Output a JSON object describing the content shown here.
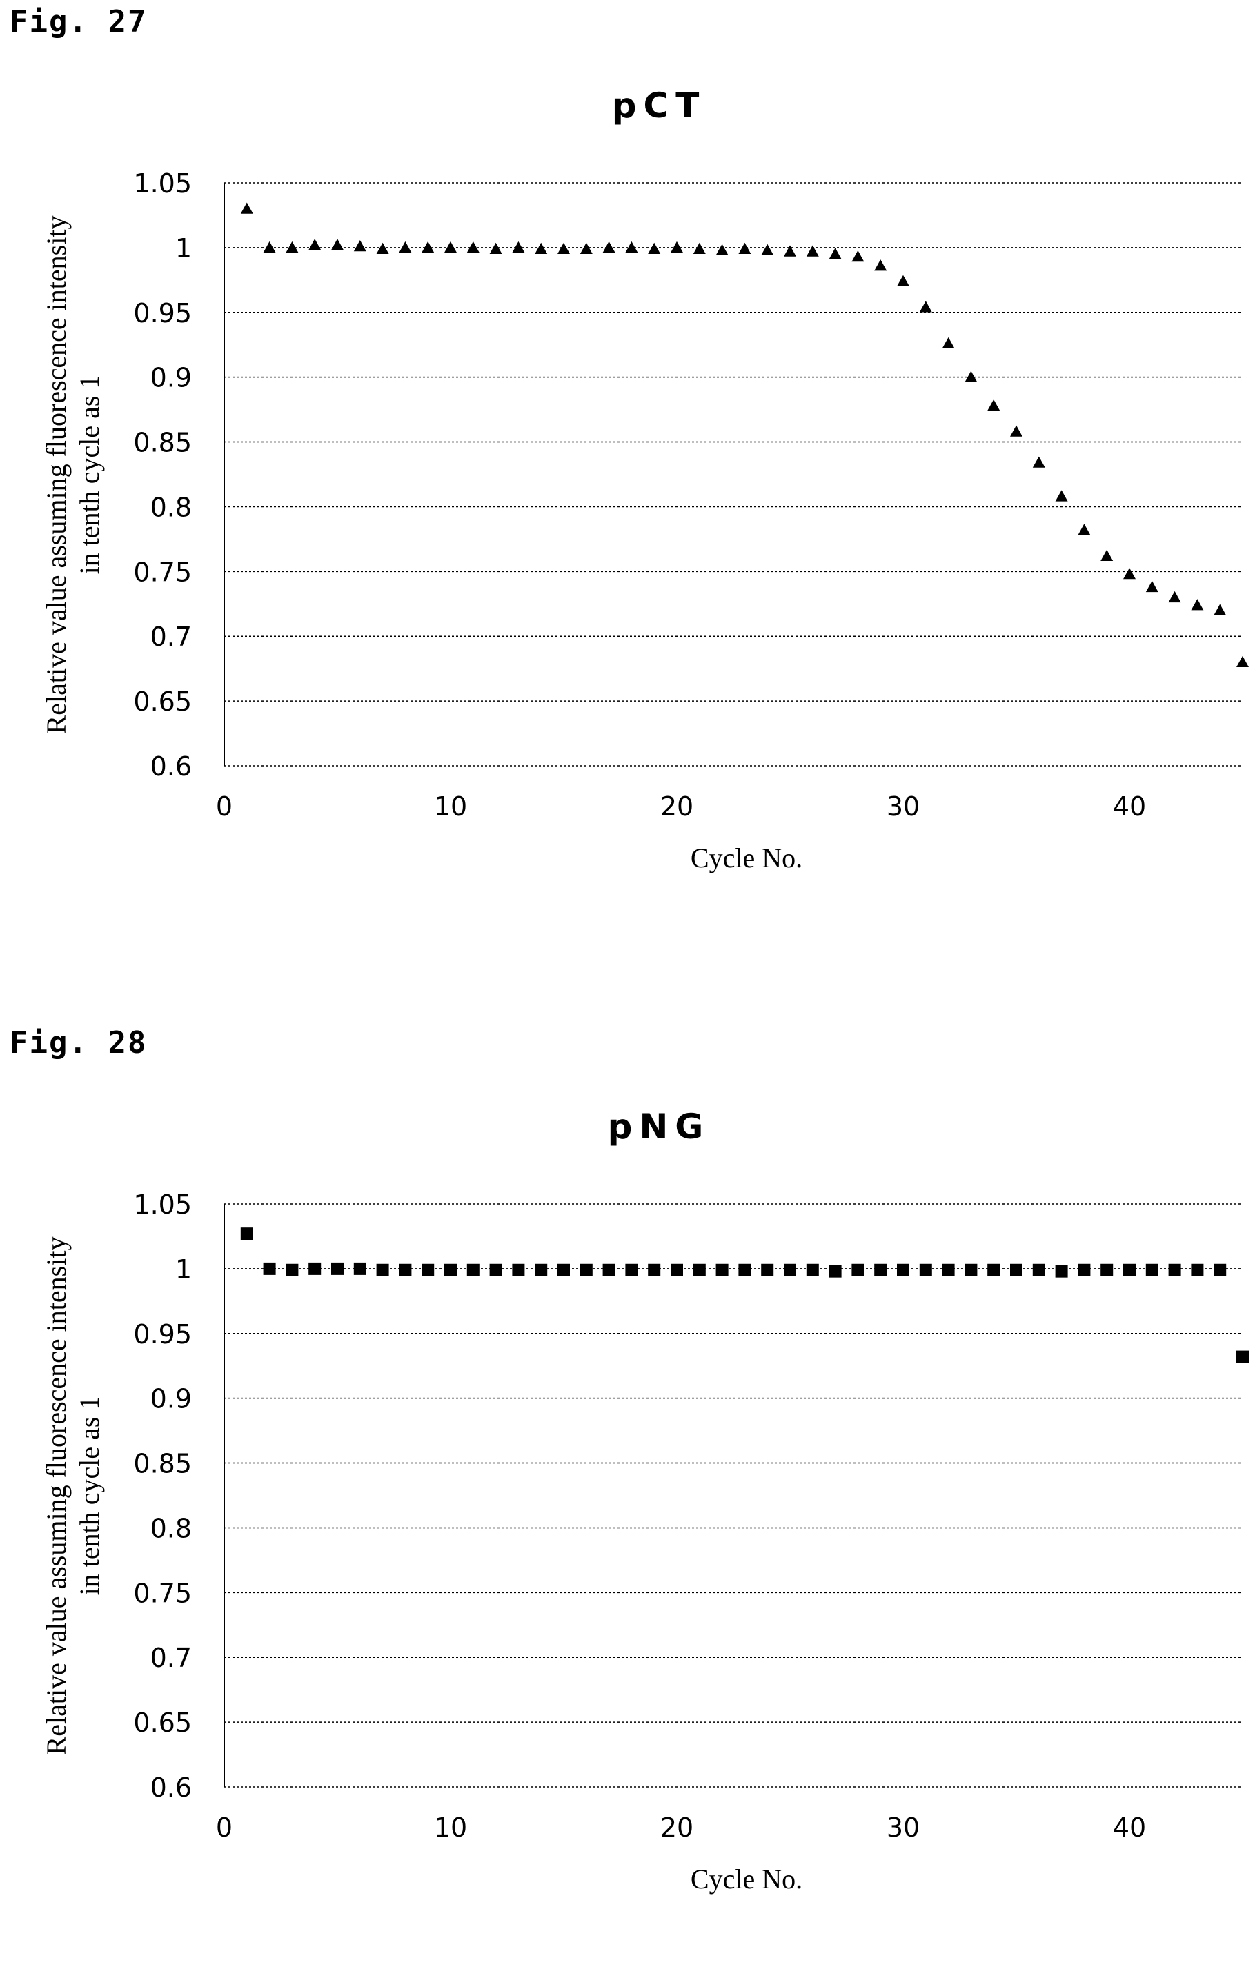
{
  "figures": [
    {
      "label": "Fig. 27"
    },
    {
      "label": "Fig. 28"
    }
  ],
  "chart_data": [
    {
      "type": "scatter",
      "title": "pCT",
      "xlabel": "Cycle No.",
      "ylabel_lines": [
        "Relative value assuming fluorescence intensity",
        "in tenth cycle as 1"
      ],
      "xlim": [
        0,
        45
      ],
      "ylim": [
        0.6,
        1.05
      ],
      "xticks": [
        0,
        10,
        20,
        30,
        40
      ],
      "yticks": [
        0.6,
        0.65,
        0.7,
        0.75,
        0.8,
        0.85,
        0.9,
        0.95,
        1,
        1.05
      ],
      "ytick_labels": [
        "0.6",
        "0.65",
        "0.7",
        "0.75",
        "0.8",
        "0.85",
        "0.9",
        "0.95",
        "1",
        "1.05"
      ],
      "grid": "horizontal dotted",
      "marker": "triangle",
      "color": "#000000",
      "x": [
        1,
        2,
        3,
        4,
        5,
        6,
        7,
        8,
        9,
        10,
        11,
        12,
        13,
        14,
        15,
        16,
        17,
        18,
        19,
        20,
        21,
        22,
        23,
        24,
        25,
        26,
        27,
        28,
        29,
        30,
        31,
        32,
        33,
        34,
        35,
        36,
        37,
        38,
        39,
        40,
        41,
        42,
        43,
        44,
        45
      ],
      "y": [
        1.03,
        1.0,
        1.0,
        1.002,
        1.002,
        1.001,
        0.999,
        1.0,
        1.0,
        1.0,
        1.0,
        0.999,
        1.0,
        0.999,
        0.999,
        0.999,
        1.0,
        1.0,
        0.999,
        1.0,
        0.999,
        0.998,
        0.999,
        0.998,
        0.997,
        0.997,
        0.995,
        0.993,
        0.986,
        0.974,
        0.954,
        0.926,
        0.9,
        0.878,
        0.858,
        0.834,
        0.808,
        0.782,
        0.762,
        0.748,
        0.738,
        0.73,
        0.724,
        0.72,
        0.68
      ]
    },
    {
      "type": "scatter",
      "title": "pNG",
      "xlabel": "Cycle No.",
      "ylabel_lines": [
        "Relative value assuming fluorescence intensity",
        "in tenth cycle as 1"
      ],
      "xlim": [
        0,
        45
      ],
      "ylim": [
        0.6,
        1.05
      ],
      "xticks": [
        0,
        10,
        20,
        30,
        40
      ],
      "yticks": [
        0.6,
        0.65,
        0.7,
        0.75,
        0.8,
        0.85,
        0.9,
        0.95,
        1,
        1.05
      ],
      "ytick_labels": [
        "0.6",
        "0.65",
        "0.7",
        "0.75",
        "0.8",
        "0.85",
        "0.9",
        "0.95",
        "1",
        "1.05"
      ],
      "grid": "horizontal dotted",
      "marker": "square",
      "color": "#000000",
      "x": [
        1,
        2,
        3,
        4,
        5,
        6,
        7,
        8,
        9,
        10,
        11,
        12,
        13,
        14,
        15,
        16,
        17,
        18,
        19,
        20,
        21,
        22,
        23,
        24,
        25,
        26,
        27,
        28,
        29,
        30,
        31,
        32,
        33,
        34,
        35,
        36,
        37,
        38,
        39,
        40,
        41,
        42,
        43,
        44,
        45
      ],
      "y": [
        1.027,
        1.0,
        0.999,
        1.0,
        1.0,
        1.0,
        0.999,
        0.999,
        0.999,
        0.999,
        0.999,
        0.999,
        0.999,
        0.999,
        0.999,
        0.999,
        0.999,
        0.999,
        0.999,
        0.999,
        0.999,
        0.999,
        0.999,
        0.999,
        0.999,
        0.999,
        0.998,
        0.999,
        0.999,
        0.999,
        0.999,
        0.999,
        0.999,
        0.999,
        0.999,
        0.999,
        0.998,
        0.999,
        0.999,
        0.999,
        0.999,
        0.999,
        0.999,
        0.999,
        0.932
      ]
    }
  ]
}
